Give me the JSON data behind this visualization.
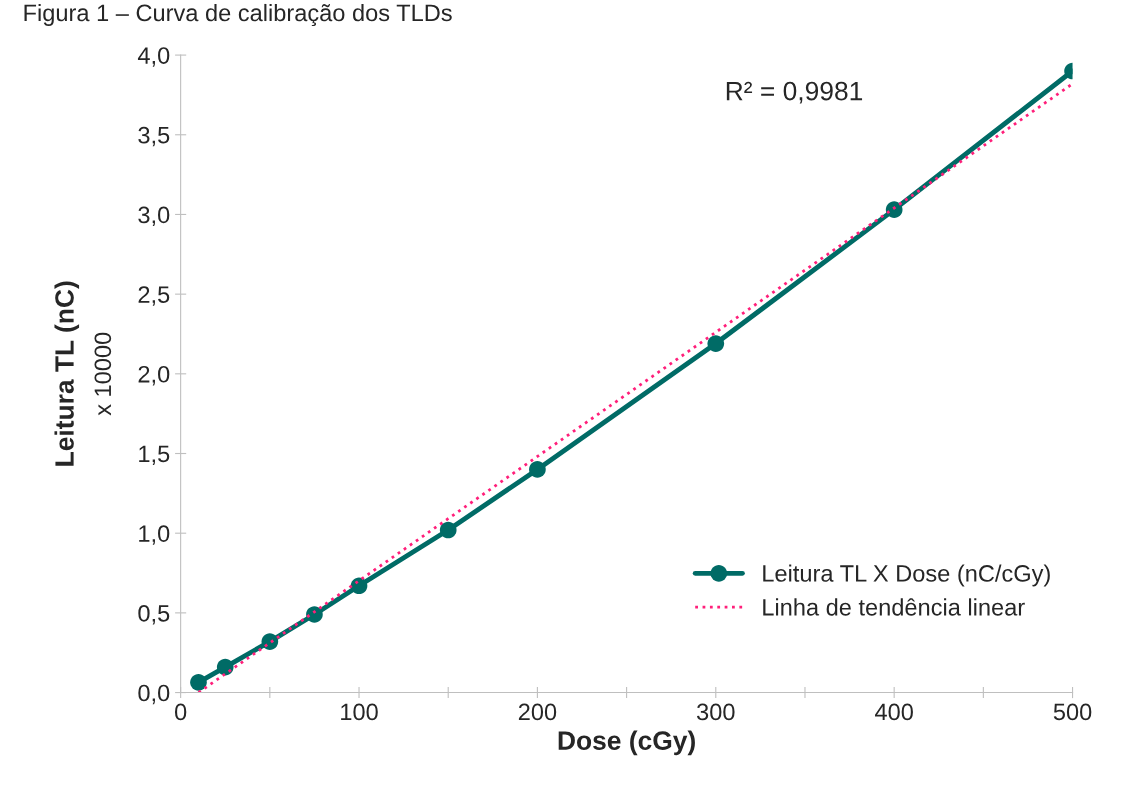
{
  "chart_data": {
    "type": "line",
    "title": "Figura 1 – Curva de calibração dos TLDs",
    "xlabel": "Dose (cGy)",
    "ylabel": "Leitura TL (nC)",
    "annotations": [
      "x 10000",
      "R² = 0,9981"
    ],
    "x": [
      10,
      25,
      50,
      75,
      100,
      150,
      200,
      300,
      400,
      500
    ],
    "series": [
      {
        "name": "Leitura TL X Dose (nC/cGy)",
        "color": "#006b66",
        "marker": "circle",
        "line_style": "solid",
        "values": [
          0.064,
          0.16,
          0.32,
          0.49,
          0.67,
          1.02,
          1.4,
          2.19,
          3.03,
          3.9
        ]
      },
      {
        "name": "Linha de tendência linear",
        "type": "line",
        "color": "#ff1f7a",
        "marker": "none",
        "line_style": "dotted",
        "x": [
          10,
          500
        ],
        "values": [
          0.0,
          3.82
        ]
      }
    ],
    "xlim": [
      0,
      500
    ],
    "ylim": [
      0,
      4
    ],
    "xticks": [
      0,
      {
        "value": 50,
        "label": null
      },
      100,
      {
        "value": 150,
        "label": null
      },
      200,
      {
        "value": 250,
        "label": null
      },
      300,
      {
        "value": 350,
        "label": null
      },
      400,
      {
        "value": 450,
        "label": null
      },
      500
    ],
    "yticks": [
      {
        "value": 0,
        "label": "0,0"
      },
      {
        "value": 0.5,
        "label": "0,5"
      },
      {
        "value": 1.0,
        "label": "1,0"
      },
      {
        "value": 1.5,
        "label": "1,5"
      },
      {
        "value": 2.0,
        "label": "2,0"
      },
      {
        "value": 2.5,
        "label": "2,5"
      },
      {
        "value": 3.0,
        "label": "3,0"
      },
      {
        "value": 3.5,
        "label": "3,5"
      },
      {
        "value": 4.0,
        "label": "4,0"
      }
    ],
    "grid": false,
    "legend": "bottom right"
  }
}
